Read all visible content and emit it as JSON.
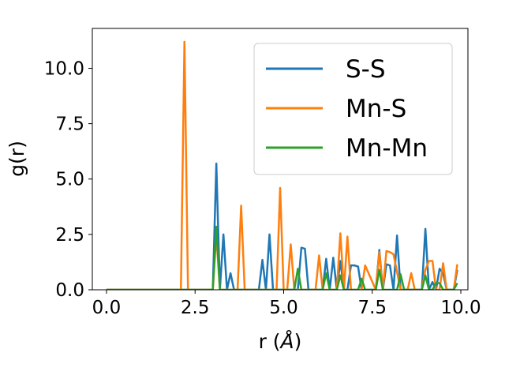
{
  "chart_data": {
    "type": "line",
    "title": "",
    "xlabel_main": "r (",
    "xlabel_unit": "Å",
    "xlabel_close": ")",
    "ylabel": "g(r)",
    "xlim": [
      -0.4,
      10.2
    ],
    "ylim": [
      0.0,
      11.8
    ],
    "xticks": [
      0.0,
      2.5,
      5.0,
      7.5,
      10.0
    ],
    "xtick_labels": [
      "0.0",
      "2.5",
      "5.0",
      "7.5",
      "10.0"
    ],
    "yticks": [
      0.0,
      2.5,
      5.0,
      7.5,
      10.0
    ],
    "ytick_labels": [
      "0.0",
      "2.5",
      "5.0",
      "7.5",
      "10.0"
    ],
    "legend_position": "top-right",
    "grid": false,
    "series": [
      {
        "name": "S-S",
        "color": "#1f77b4",
        "x": [
          0.0,
          2.9,
          3.0,
          3.1,
          3.2,
          3.3,
          3.4,
          3.5,
          3.6,
          4.3,
          4.4,
          4.5,
          4.6,
          4.7,
          4.8,
          4.9,
          5.4,
          5.5,
          5.6,
          5.7,
          6.1,
          6.2,
          6.3,
          6.4,
          6.5,
          6.6,
          6.7,
          6.8,
          6.9,
          7.0,
          7.1,
          7.2,
          7.3,
          7.4,
          7.5,
          7.6,
          7.7,
          7.8,
          7.9,
          8.0,
          8.1,
          8.2,
          8.3,
          8.4,
          8.5,
          8.9,
          9.0,
          9.1,
          9.2,
          9.3,
          9.4,
          9.5,
          9.6,
          9.7,
          9.8,
          9.9
        ],
        "y": [
          0.0,
          0.0,
          0.0,
          5.7,
          0.0,
          2.5,
          0.0,
          0.75,
          0.0,
          0.0,
          1.35,
          0.0,
          2.5,
          0.0,
          0.0,
          0.0,
          0.0,
          1.9,
          1.85,
          0.0,
          0.0,
          1.4,
          0.0,
          1.45,
          0.0,
          1.3,
          0.0,
          0.0,
          1.1,
          1.1,
          1.05,
          0.0,
          0.0,
          0.0,
          0.0,
          0.0,
          1.8,
          0.0,
          1.15,
          1.1,
          0.0,
          2.45,
          0.0,
          0.0,
          0.0,
          0.0,
          2.75,
          0.0,
          0.35,
          0.0,
          0.95,
          0.75,
          0.0,
          0.0,
          0.0,
          0.9
        ]
      },
      {
        "name": "Mn-S",
        "color": "#ff7f0e",
        "x": [
          0.0,
          2.1,
          2.2,
          2.3,
          3.0,
          3.1,
          3.2,
          3.3,
          3.7,
          3.8,
          3.9,
          4.8,
          4.9,
          5.0,
          5.1,
          5.2,
          5.3,
          5.9,
          6.0,
          6.1,
          6.5,
          6.6,
          6.7,
          6.8,
          6.9,
          7.2,
          7.3,
          7.6,
          7.7,
          7.8,
          7.9,
          8.0,
          8.1,
          8.3,
          8.4,
          8.5,
          8.6,
          8.7,
          8.8,
          8.9,
          9.0,
          9.1,
          9.2,
          9.3,
          9.4,
          9.5,
          9.6,
          9.7,
          9.8,
          9.9
        ],
        "y": [
          0.0,
          0.0,
          11.2,
          0.0,
          0.0,
          2.5,
          0.0,
          0.0,
          0.0,
          3.8,
          0.0,
          0.0,
          4.6,
          0.0,
          0.0,
          2.05,
          0.0,
          0.0,
          1.55,
          0.0,
          0.0,
          2.55,
          0.0,
          2.4,
          0.0,
          0.0,
          1.1,
          0.0,
          1.7,
          0.0,
          1.75,
          1.7,
          1.6,
          0.0,
          0.0,
          0.0,
          0.75,
          0.0,
          0.0,
          0.0,
          0.9,
          1.3,
          1.3,
          0.0,
          0.0,
          1.2,
          0.0,
          0.0,
          0.0,
          1.15
        ]
      },
      {
        "name": "Mn-Mn",
        "color": "#2ca02c",
        "x": [
          0.0,
          2.9,
          3.0,
          3.1,
          3.2,
          3.3,
          5.3,
          5.4,
          5.5,
          6.1,
          6.2,
          6.3,
          6.5,
          6.6,
          6.7,
          7.1,
          7.2,
          7.3,
          7.6,
          7.7,
          7.8,
          7.9,
          8.2,
          8.3,
          8.4,
          8.9,
          9.0,
          9.1,
          9.2,
          9.3,
          9.4,
          9.5,
          9.6,
          9.7,
          9.8,
          9.9
        ],
        "y": [
          0.0,
          0.0,
          0.0,
          2.85,
          0.0,
          0.0,
          0.0,
          0.95,
          0.0,
          0.0,
          0.75,
          0.0,
          0.0,
          0.65,
          0.0,
          0.0,
          0.5,
          0.0,
          0.0,
          0.9,
          0.0,
          0.0,
          0.0,
          0.7,
          0.0,
          0.0,
          0.65,
          0.0,
          0.0,
          0.3,
          0.3,
          0.0,
          0.0,
          0.0,
          0.0,
          0.3
        ]
      }
    ]
  }
}
